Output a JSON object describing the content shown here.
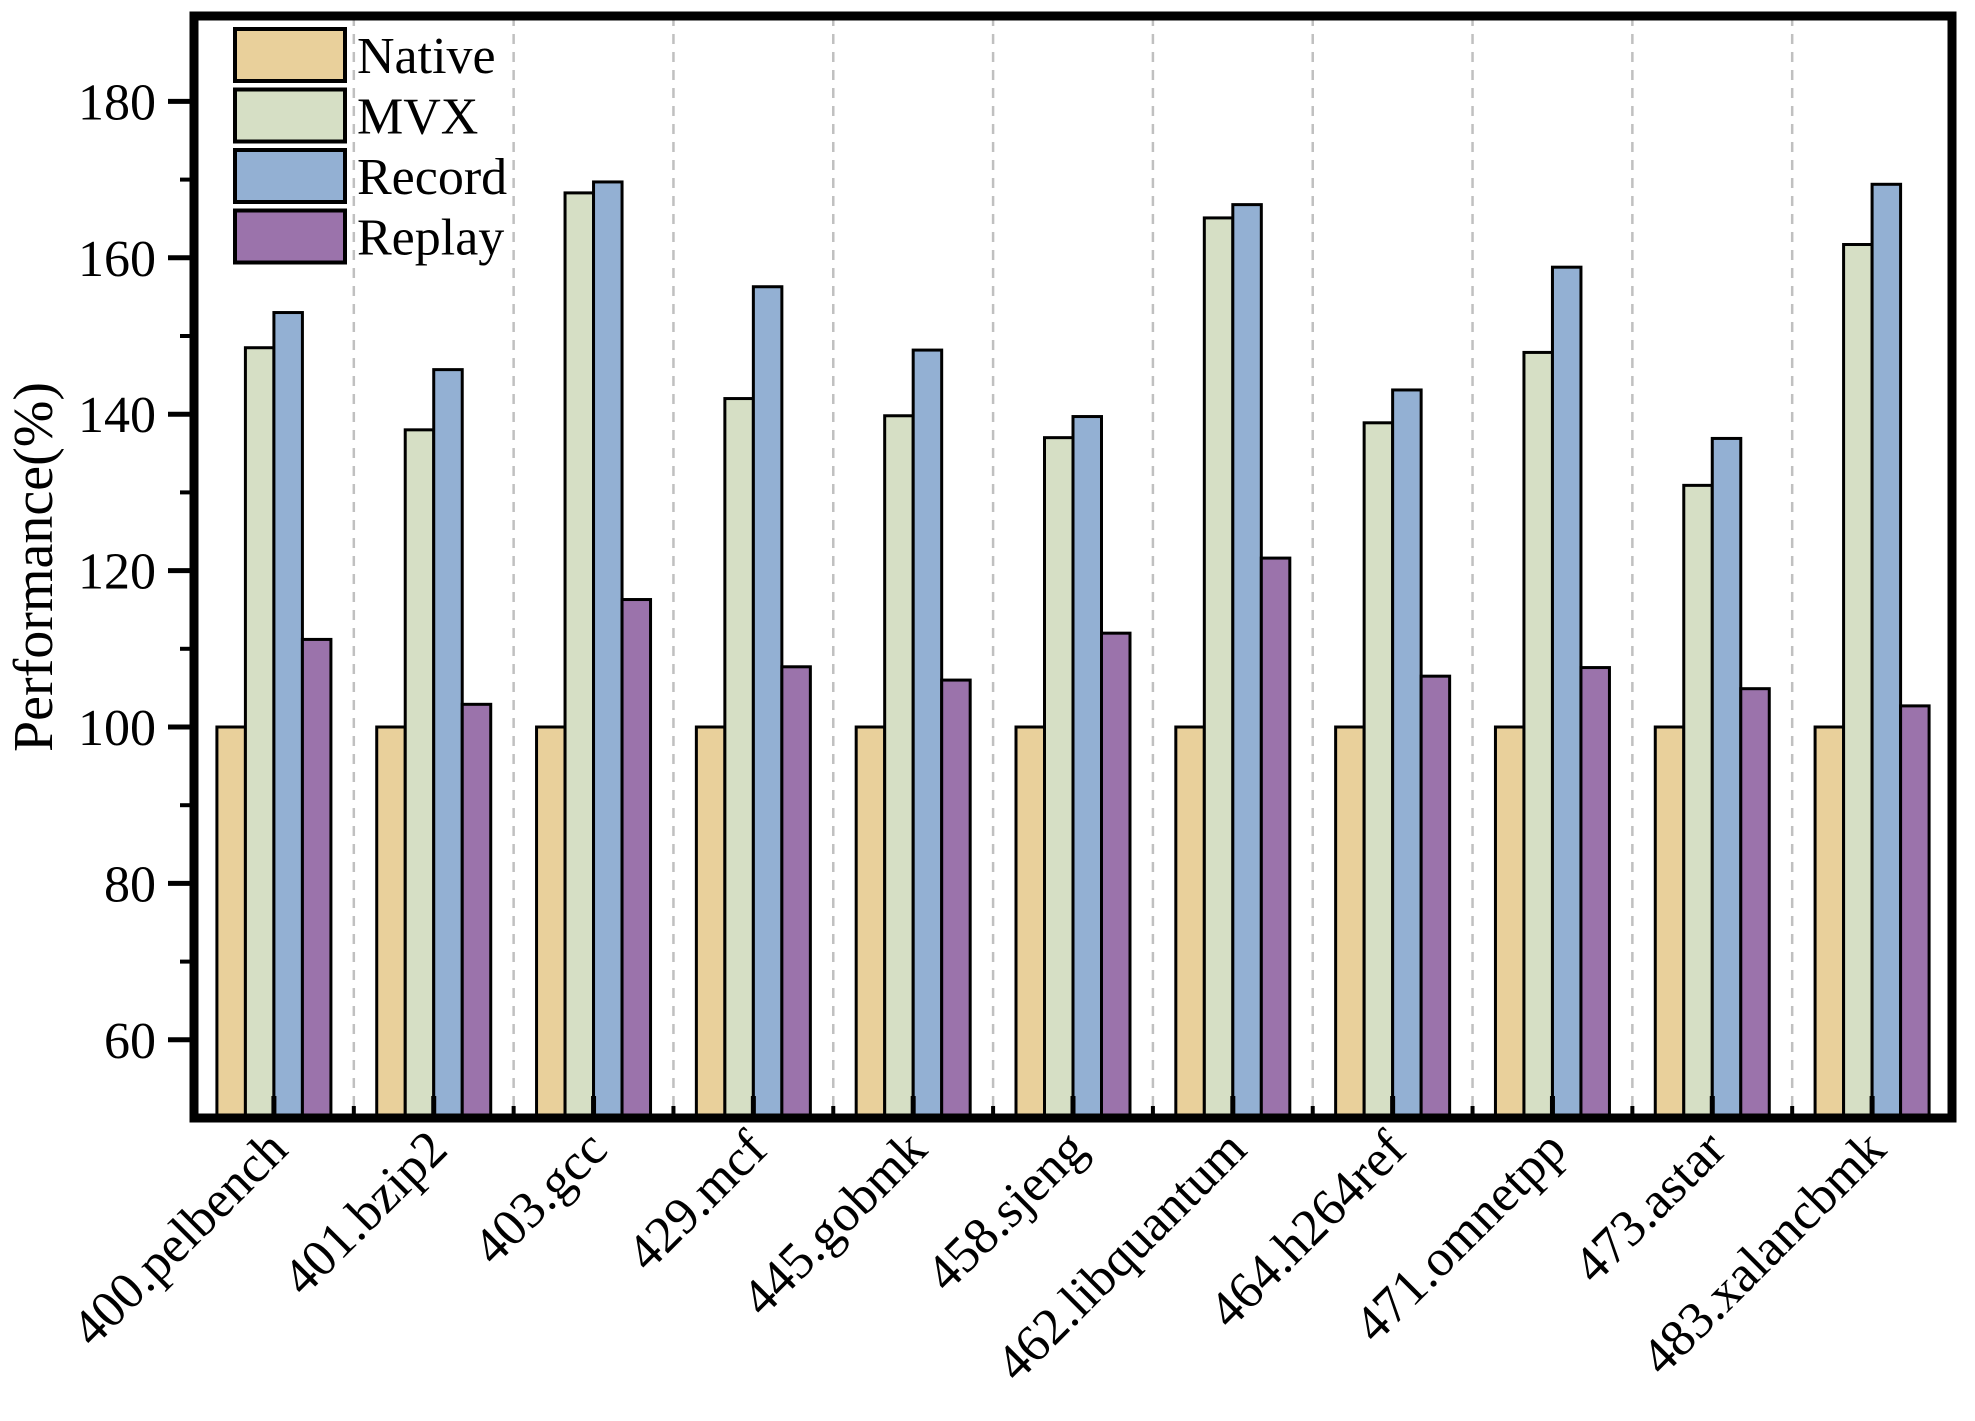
{
  "chart_data": {
    "type": "bar",
    "title": "",
    "xlabel": "",
    "ylabel": "Performance(%)",
    "ylim": [
      50,
      191
    ],
    "yticks_major": [
      60,
      80,
      100,
      120,
      140,
      160,
      180
    ],
    "yticks_minor": [
      70,
      90,
      110,
      130,
      150,
      170
    ],
    "grid": "vertical dashed separators between category groups",
    "legend_position": "top-left inside plot, no frame",
    "categories": [
      "400.pelbench",
      "401.bzip2",
      "403.gcc",
      "429.mcf",
      "445.gobmk",
      "458.sjeng",
      "462.libquantum",
      "464.h264ref",
      "471.omnetpp",
      "473.astar",
      "483.xalancbmk"
    ],
    "series": [
      {
        "name": "Native",
        "color": "#e9d09b",
        "values": [
          100,
          100,
          100,
          100,
          100,
          100,
          100,
          100,
          100,
          100,
          100
        ]
      },
      {
        "name": "MVX",
        "color": "#d6dfc5",
        "values": [
          148.5,
          138.0,
          168.3,
          142.0,
          139.8,
          137.0,
          165.1,
          138.9,
          147.9,
          130.9,
          161.7
        ]
      },
      {
        "name": "Record",
        "color": "#93b0d3",
        "values": [
          153.0,
          145.7,
          169.7,
          156.3,
          148.2,
          139.7,
          166.8,
          143.1,
          158.8,
          136.9,
          169.4
        ]
      },
      {
        "name": "Replay",
        "color": "#9b73ab",
        "values": [
          111.2,
          102.9,
          116.3,
          107.7,
          106.0,
          112.0,
          121.6,
          106.5,
          107.6,
          104.9,
          102.7
        ]
      }
    ]
  },
  "style": {
    "bar_border_color": "#000000",
    "axis_color": "#000000",
    "gridline_color": "#c0c0c0",
    "background": "#ffffff"
  }
}
